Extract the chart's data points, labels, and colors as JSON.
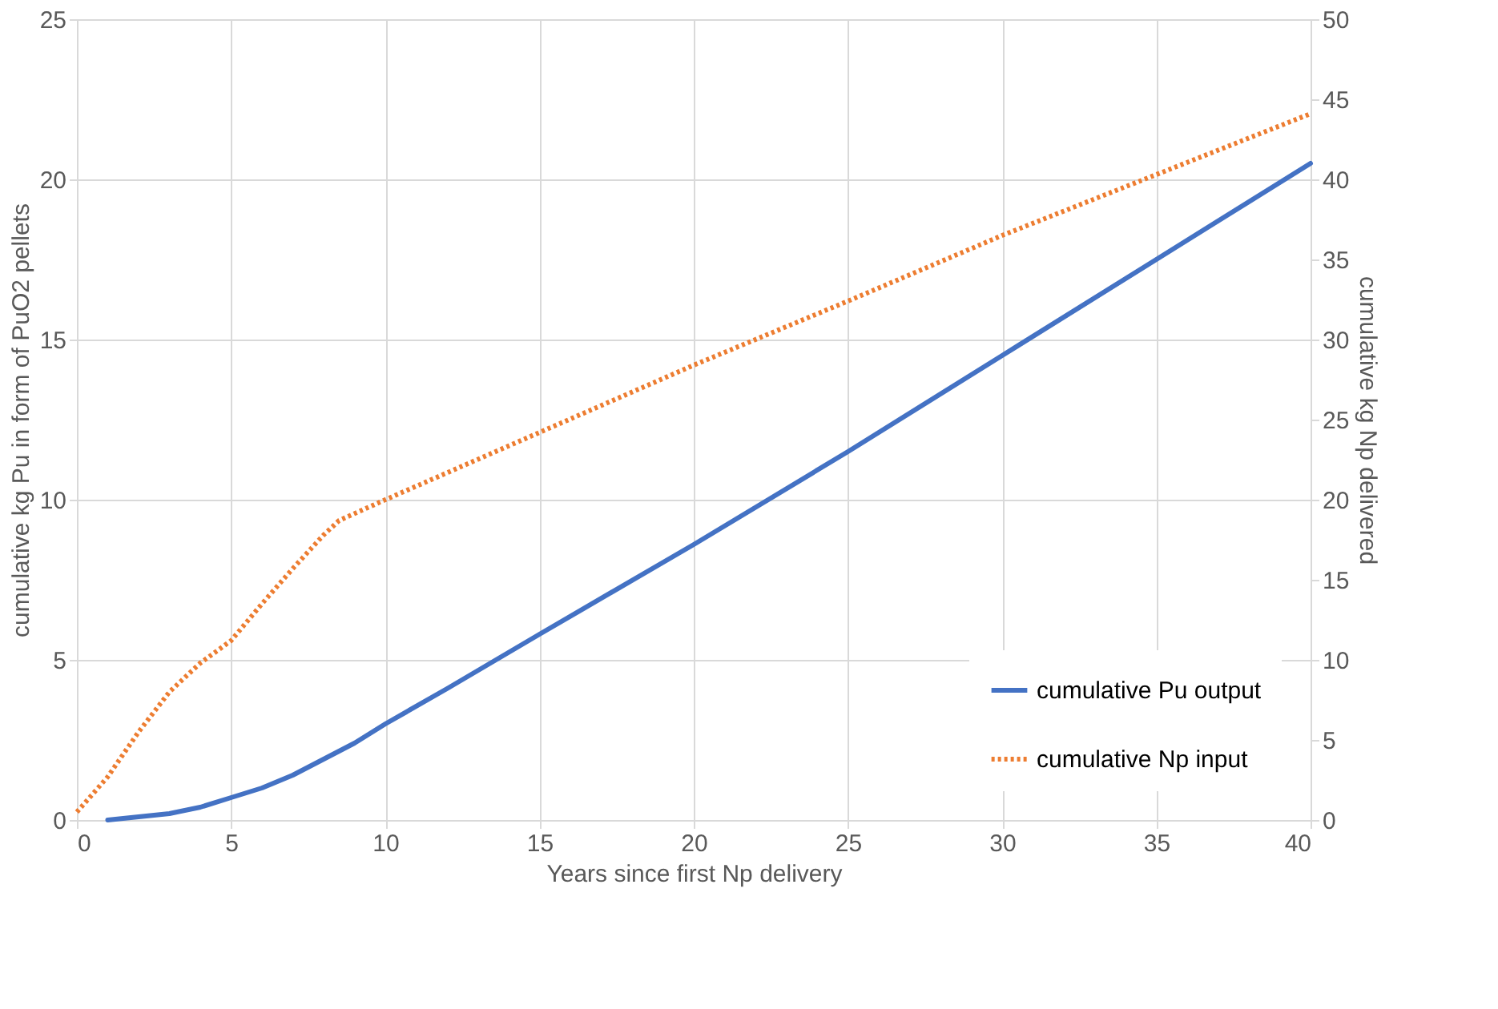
{
  "chart_data": {
    "type": "line",
    "xlabel": "Years since first Np delivery",
    "ylabel": "cumulative kg Pu in form of PuO2 pellets",
    "y2label": "cumulative kg Np delivered",
    "xlim": [
      0,
      40
    ],
    "xticks": [
      0,
      5,
      10,
      15,
      20,
      25,
      30,
      35,
      40
    ],
    "ylim": [
      0,
      25
    ],
    "yticks": [
      0,
      5,
      10,
      15,
      20,
      25
    ],
    "y2lim": [
      0,
      50
    ],
    "y2ticks": [
      0,
      5,
      10,
      15,
      20,
      25,
      30,
      35,
      40,
      45,
      50
    ],
    "grid": true,
    "legend": "bottom right",
    "series": [
      {
        "name": "cumulative Pu output",
        "color": "#4472c4",
        "line_style": "solid",
        "x": [
          1,
          2,
          3,
          4,
          5,
          6,
          7,
          8,
          9,
          10,
          12,
          15,
          20,
          25,
          30,
          35,
          40
        ],
        "values": [
          0,
          0.1,
          0.2,
          0.4,
          0.7,
          1.0,
          1.4,
          1.9,
          2.4,
          3.0,
          4.1,
          5.8,
          8.6,
          11.5,
          14.5,
          17.5,
          20.5
        ]
      },
      {
        "name": "cumulative Np input",
        "color": "#ed7d31",
        "line_style": "dotted",
        "axis": "y2",
        "x": [
          0,
          1,
          2,
          3,
          4,
          5,
          6,
          7,
          8,
          8.5,
          10,
          15,
          20,
          25,
          30,
          35,
          40
        ],
        "values": [
          0.5,
          2.7,
          5.5,
          8,
          9.8,
          11.2,
          13.5,
          15.7,
          17.8,
          18.7,
          20,
          24.2,
          28.4,
          32.4,
          36.5,
          40.3,
          44.1
        ]
      }
    ]
  }
}
